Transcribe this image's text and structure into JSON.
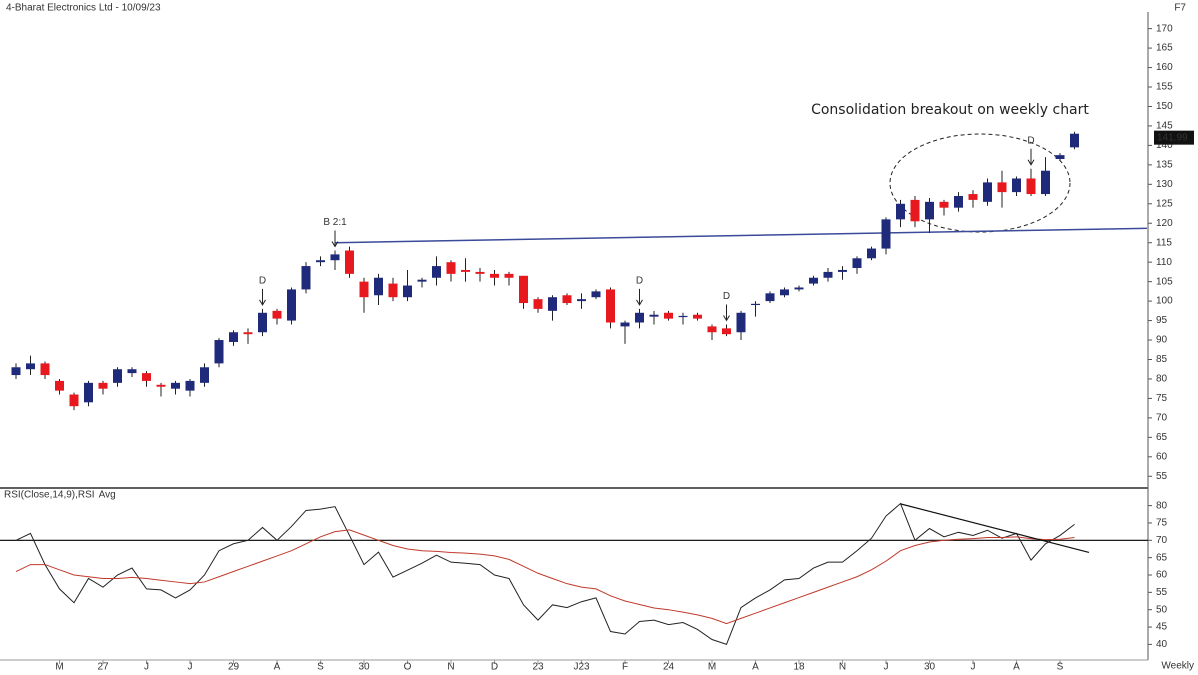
{
  "chart_data": {
    "type": "candlestick",
    "title": "4-Bharat Electronics Ltd - 10/09/23",
    "corner_label": "F7",
    "x_axis_label": "Weekly",
    "categories": [
      null,
      null,
      null,
      "M",
      null,
      null,
      "27",
      null,
      null,
      "J",
      null,
      null,
      "J",
      null,
      null,
      "29",
      null,
      null,
      "A",
      null,
      null,
      "S",
      null,
      null,
      "30",
      null,
      null,
      "O",
      null,
      null,
      "N",
      null,
      null,
      "D",
      null,
      null,
      "23",
      null,
      null,
      "J23",
      null,
      null,
      "F",
      null,
      null,
      "24",
      null,
      null,
      "M",
      null,
      null,
      "A",
      null,
      null,
      "18",
      null,
      null,
      "N",
      null,
      null,
      "J",
      null,
      null,
      "30",
      null,
      null,
      "J",
      null,
      null,
      "A",
      null,
      null,
      "S",
      null
    ],
    "open": [
      81,
      82.5,
      84,
      79.5,
      76,
      74,
      79,
      79,
      81.5,
      81.5,
      78.5,
      77.5,
      77,
      79,
      84,
      89.5,
      92,
      92,
      97.5,
      95,
      103,
      110,
      110.5,
      113,
      105,
      101.5,
      104.5,
      101,
      105,
      106,
      110,
      108,
      107.5,
      107,
      107,
      106.5,
      100.5,
      97.5,
      101.5,
      100,
      101,
      103,
      93.5,
      94.5,
      96,
      97,
      96,
      96.5,
      93.5,
      93,
      92,
      99,
      100,
      101.5,
      103,
      104.5,
      106,
      107.5,
      108.5,
      111,
      113.5,
      121,
      126,
      121,
      125.5,
      124,
      127.5,
      125.5,
      130.5,
      128,
      131.5,
      127.5,
      136.5,
      139.5
    ],
    "high": [
      84,
      86,
      84.5,
      80,
      76.5,
      79.5,
      79.5,
      83,
      83,
      82,
      79,
      79.5,
      80,
      84,
      90.5,
      92.5,
      93,
      98,
      98,
      103.5,
      110,
      111.5,
      113,
      114,
      106,
      107,
      106,
      108,
      106,
      111.5,
      110.5,
      111,
      108.5,
      108,
      107.5,
      106.5,
      101,
      101.5,
      102,
      102,
      103,
      103.5,
      95,
      98,
      97.5,
      97.5,
      97,
      97,
      94,
      94,
      97.5,
      100,
      102.5,
      103.5,
      104,
      106.5,
      108.5,
      109,
      111.5,
      114,
      121.5,
      126,
      127,
      126.5,
      126,
      128,
      128.5,
      131.5,
      133.5,
      132,
      134,
      137,
      138,
      143.5
    ],
    "low": [
      80,
      81,
      80,
      76,
      72,
      73,
      76,
      78,
      80.5,
      78,
      75.5,
      76,
      75.5,
      78,
      83,
      88.5,
      89,
      91,
      94,
      94,
      102,
      109,
      108,
      106,
      97,
      99,
      100,
      100,
      103.5,
      104,
      105,
      105,
      105,
      104,
      104,
      98,
      97,
      95,
      99,
      98,
      100.5,
      93,
      89,
      93,
      94,
      95,
      94,
      95,
      90,
      91,
      90,
      96,
      99.5,
      101,
      102.5,
      104,
      105,
      105.5,
      107,
      110.5,
      112,
      119,
      119,
      117.5,
      122,
      123,
      124,
      124.5,
      124,
      127,
      127,
      127,
      136,
      139
    ],
    "close": [
      83,
      84,
      81,
      77,
      73,
      79,
      77.5,
      82.5,
      82.5,
      79.5,
      78,
      79,
      79.5,
      83,
      90,
      92,
      91.5,
      97,
      95.5,
      103,
      109,
      110.5,
      112,
      107,
      101,
      106,
      101,
      104,
      105.5,
      109,
      107,
      107.5,
      107,
      106,
      106,
      99.5,
      98,
      101,
      99.5,
      100.5,
      102.5,
      94.5,
      94.5,
      97,
      96.5,
      95.5,
      96.2,
      95.5,
      92,
      91.5,
      97,
      99.3,
      102,
      103,
      103.5,
      106,
      107.5,
      108,
      111,
      113.5,
      121,
      125,
      120.5,
      125.5,
      124,
      127,
      126,
      130.5,
      128,
      131.5,
      127.5,
      133.5,
      137.5,
      143
    ],
    "up_color": "#1f2a7a",
    "down_color": "#e8191e",
    "last_price": 141.99,
    "ylim": [
      52.5,
      173.5
    ],
    "yticks": [
      55,
      60,
      65,
      70,
      75,
      80,
      85,
      90,
      95,
      100,
      105,
      110,
      115,
      120,
      125,
      130,
      135,
      140,
      145,
      150,
      155,
      160,
      165,
      170
    ],
    "annotation": "Consolidation breakout on weekly chart",
    "markers": [
      {
        "label": "D",
        "index": 17
      },
      {
        "label": "B 2:1",
        "index": 22
      },
      {
        "label": "D",
        "index": 43
      },
      {
        "label": "D",
        "index": 49
      },
      {
        "label": "D",
        "index": 70
      }
    ],
    "trendline": {
      "x": [
        22,
        78
      ],
      "values": [
        115,
        118.7
      ],
      "color": "#3b4a9a"
    },
    "rsi": {
      "series": [
        {
          "name": "RSI(Close,14,9),RSI",
          "color": "#222222",
          "values": [
            70,
            72,
            63,
            56,
            52,
            59,
            56.5,
            60,
            62,
            56,
            55.7,
            53.4,
            55.7,
            60,
            67,
            69,
            70,
            73.7,
            70,
            74,
            78.6,
            79,
            79.7,
            71.4,
            63,
            66.6,
            59.4,
            61.4,
            63.4,
            65.7,
            63.7,
            63.4,
            63,
            60,
            59,
            51.4,
            47,
            51.4,
            50.6,
            52.3,
            53.4,
            43.7,
            43,
            46.6,
            47,
            45.7,
            46.3,
            44.3,
            41.4,
            40,
            50.6,
            53.4,
            55.7,
            58.6,
            59,
            62,
            63.7,
            63.7,
            67,
            70.6,
            77,
            80.6,
            70,
            73.4,
            71,
            72.3,
            71.4,
            72.9,
            70.6,
            72,
            64.3,
            69,
            71.4,
            74.6
          ]
        },
        {
          "name": "Avg",
          "color": "#c0392b",
          "values": [
            61,
            63,
            63,
            61.5,
            60,
            59.5,
            59,
            59,
            59.3,
            59,
            58.5,
            58,
            57.5,
            58,
            59.5,
            61,
            62.5,
            64,
            65.5,
            67,
            69,
            71,
            72.5,
            73,
            71.5,
            70,
            68.5,
            67.5,
            67,
            66.8,
            66.5,
            66.3,
            66,
            65.5,
            64.5,
            62.5,
            60.5,
            59,
            57.5,
            56.5,
            56,
            54,
            52.5,
            51.5,
            50.5,
            50,
            49.3,
            48.5,
            47.5,
            46,
            47.5,
            49,
            50.5,
            52,
            53.5,
            55,
            56.5,
            58,
            59.5,
            61.5,
            64,
            67,
            68.5,
            69.5,
            70,
            70.3,
            70.5,
            70.8,
            70.8,
            71,
            70.5,
            70.2,
            70.3,
            70.8
          ]
        }
      ],
      "ylim": [
        35.5,
        84.5
      ],
      "yticks": [
        40,
        45,
        50,
        55,
        60,
        65,
        70,
        75,
        80
      ],
      "reference": 70,
      "trendline": {
        "x": [
          61,
          74
        ],
        "values": [
          80.5,
          66.5
        ]
      }
    }
  }
}
